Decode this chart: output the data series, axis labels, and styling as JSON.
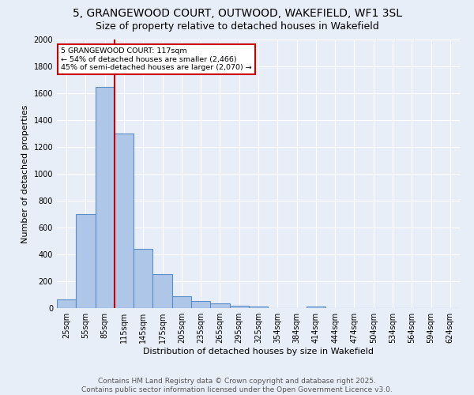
{
  "title": "5, GRANGEWOOD COURT, OUTWOOD, WAKEFIELD, WF1 3SL",
  "subtitle": "Size of property relative to detached houses in Wakefield",
  "xlabel": "Distribution of detached houses by size in Wakefield",
  "ylabel": "Number of detached properties",
  "categories": [
    "25sqm",
    "55sqm",
    "85sqm",
    "115sqm",
    "145sqm",
    "175sqm",
    "205sqm",
    "235sqm",
    "265sqm",
    "295sqm",
    "325sqm",
    "354sqm",
    "384sqm",
    "414sqm",
    "444sqm",
    "474sqm",
    "504sqm",
    "534sqm",
    "564sqm",
    "594sqm",
    "624sqm"
  ],
  "values": [
    65,
    700,
    1650,
    1300,
    440,
    255,
    90,
    55,
    35,
    20,
    10,
    0,
    0,
    12,
    0,
    0,
    0,
    0,
    0,
    0,
    0
  ],
  "bar_color": "#aec6e8",
  "bar_edge_color": "#5b8ec4",
  "red_line_x": 2.5,
  "annotation_text": "5 GRANGEWOOD COURT: 117sqm\n← 54% of detached houses are smaller (2,466)\n45% of semi-detached houses are larger (2,070) →",
  "annotation_box_color": "#ffffff",
  "annotation_box_edge": "#cc0000",
  "ylim": [
    0,
    2000
  ],
  "yticks": [
    0,
    200,
    400,
    600,
    800,
    1000,
    1200,
    1400,
    1600,
    1800,
    2000
  ],
  "background_color": "#e8eef8",
  "grid_color": "#ffffff",
  "footer": "Contains HM Land Registry data © Crown copyright and database right 2025.\nContains public sector information licensed under the Open Government Licence v3.0.",
  "title_fontsize": 10,
  "subtitle_fontsize": 9,
  "label_fontsize": 8,
  "tick_fontsize": 7,
  "footer_fontsize": 6.5
}
